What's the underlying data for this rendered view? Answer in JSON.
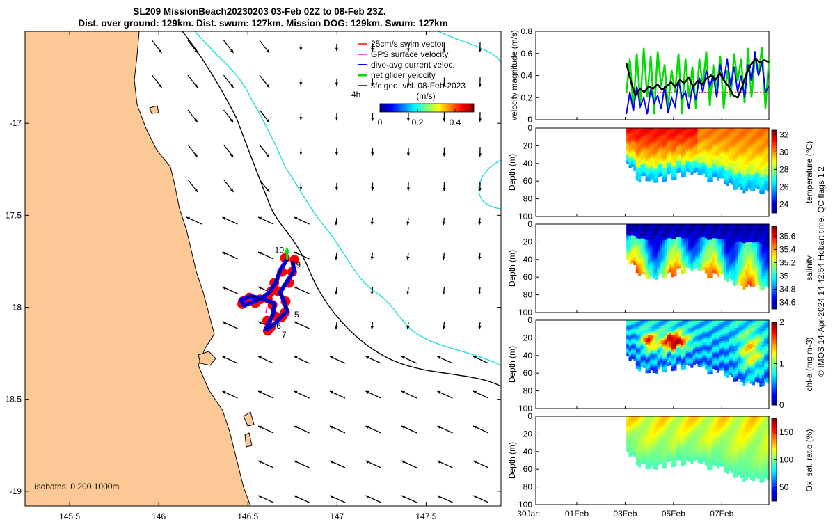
{
  "chart_data": [
    {
      "type": "map",
      "title_line1": "SL209 MissionBeach20230203 03-Feb 02Z to 08-Feb 23Z.",
      "title_line2": "Dist. over ground: 129km. Dist. swum: 127km. Mission DOG: 129km. Swum: 127km",
      "xlim": [
        145.25,
        147.92
      ],
      "ylim": [
        -19.08,
        -16.5
      ],
      "xticks": [
        145.5,
        146,
        146.5,
        147,
        147.5
      ],
      "xtick_labels": [
        "145.5",
        "146",
        "146.5",
        "147",
        "147.5"
      ],
      "yticks": [
        -17,
        -17.5,
        -18,
        -18.5,
        -19
      ],
      "ytick_labels": [
        "-17",
        "-17.5",
        "-18",
        "-18.5",
        "-19"
      ],
      "legend": {
        "placement": "top-right",
        "entries": [
          {
            "label": "25cm/s swim vector",
            "color": "#ff0000"
          },
          {
            "label": "GPS surface velocity",
            "color": "#ff00ff"
          },
          {
            "label": "dive-avg current veloc.",
            "color": "#0000ff"
          },
          {
            "label": "net glider velocity",
            "color": "#00dd00"
          },
          {
            "label": "sfc geo. vel. 08-Feb-2023",
            "color": "#000000"
          }
        ]
      },
      "time_label": "4h",
      "colorbar": {
        "label": "(m/s)",
        "min": 0,
        "max": 0.5,
        "ticks": [
          0,
          0.2,
          0.4
        ],
        "tick_labels": [
          "0",
          "0.2",
          "0.4"
        ]
      },
      "isobath_label": "isobaths: 0   200  1000m",
      "track_day_labels": [
        {
          "label": "5",
          "lon": 146.76,
          "lat": -18.04
        },
        {
          "label": "6",
          "lon": 146.66,
          "lat": -18.1
        },
        {
          "label": "7",
          "lon": 146.69,
          "lat": -18.15
        },
        {
          "label": "9",
          "lon": 146.77,
          "lat": -17.77
        },
        {
          "label": "10",
          "lon": 146.65,
          "lat": -17.69
        }
      ],
      "land_color": "#fcc996",
      "isobath_200_color": "#000000",
      "isobath_1000_color": "#22dddd"
    },
    {
      "type": "line",
      "ylabel": "velocity magnitude (m/s)",
      "ylim": [
        0,
        0.8
      ],
      "yticks": [
        0,
        0.2,
        0.4,
        0.6,
        0.8
      ],
      "ytick_labels": [
        "0",
        "0.2",
        "0.4",
        "0.6",
        "0.8"
      ],
      "x_start_day": 3.05,
      "x_end_day": 8.95,
      "series": [
        {
          "name": "net glider velocity",
          "color": "#00dd00",
          "values": [
            0.25,
            0.55,
            0.1,
            0.6,
            0.15,
            0.65,
            0.2,
            0.58,
            0.05,
            0.62,
            0.3,
            0.5,
            0.1,
            0.45,
            0.25,
            0.6,
            0.05,
            0.55,
            0.2,
            0.48,
            0.1,
            0.55,
            0.3,
            0.62,
            0.12,
            0.5,
            0.25,
            0.58,
            0.1,
            0.45,
            0.2,
            0.6,
            0.35,
            0.55,
            0.15,
            0.65,
            0.2,
            0.58,
            0.4,
            0.66,
            0.1,
            0.55
          ]
        },
        {
          "name": "dive-avg current veloc.",
          "color": "#0000ff",
          "values": [
            0.05,
            0.25,
            0.08,
            0.3,
            0.12,
            0.2,
            0.05,
            0.28,
            0.15,
            0.22,
            0.1,
            0.3,
            0.06,
            0.2,
            0.12,
            0.35,
            0.2,
            0.25,
            0.1,
            0.3,
            0.18,
            0.38,
            0.25,
            0.45,
            0.3,
            0.4,
            0.2,
            0.5,
            0.35,
            0.55,
            0.3,
            0.48,
            0.25,
            0.4,
            0.2,
            0.5,
            0.35,
            0.62,
            0.4,
            0.52,
            0.25,
            0.3
          ]
        },
        {
          "name": "sfc geo. vel.",
          "color": "#000000",
          "values": [
            0.51,
            0.35,
            0.22,
            0.28,
            0.25,
            0.3,
            0.28,
            0.32,
            0.27,
            0.3,
            0.34,
            0.3,
            0.36,
            0.33,
            0.38,
            0.3,
            0.35,
            0.32,
            0.37,
            0.4,
            0.36,
            0.42,
            0.35,
            0.3,
            0.22,
            0.2,
            0.3,
            0.42,
            0.5,
            0.55,
            0.52,
            0.54,
            0.52
          ]
        },
        {
          "name": "25cm/s swim vector",
          "color": "#ff0000",
          "values": [
            0.25,
            0.25
          ]
        }
      ]
    },
    {
      "type": "heatmap",
      "ylabel": "Depth (m)",
      "clabel": "temperature (°C)",
      "ylim": [
        0,
        100
      ],
      "yticks": [
        0,
        20,
        40,
        60,
        80,
        100
      ],
      "ytick_labels": [
        "0",
        "20",
        "40",
        "60",
        "80",
        "100"
      ],
      "clim": [
        23,
        32.5
      ],
      "cticks": [
        24,
        26,
        28,
        30,
        32
      ],
      "ctick_labels": [
        "24",
        "26",
        "28",
        "30",
        "32"
      ],
      "x_start_day": 3.05,
      "x_end_day": 8.95,
      "bottom_depth_profile": [
        40,
        45,
        60,
        55,
        58,
        62,
        55,
        60,
        52,
        58,
        50,
        55,
        48,
        52,
        50,
        56,
        60,
        55,
        58,
        62,
        65,
        68,
        70,
        72,
        68,
        70,
        73,
        72
      ],
      "surface_value": 30.5,
      "deep_value": 27
    },
    {
      "type": "heatmap",
      "ylabel": "Depth (m)",
      "clabel": "salinity",
      "ylim": [
        0,
        100
      ],
      "yticks": [
        0,
        20,
        40,
        60,
        80,
        100
      ],
      "ytick_labels": [
        "0",
        "20",
        "40",
        "60",
        "80",
        "100"
      ],
      "clim": [
        34.5,
        35.75
      ],
      "cticks": [
        34.6,
        34.8,
        35,
        35.2,
        35.4,
        35.6
      ],
      "ctick_labels": [
        "34.6",
        "34.8",
        "35",
        "35.2",
        "35.4",
        "35.6"
      ],
      "x_start_day": 3.05,
      "x_end_day": 8.95,
      "bottom_depth_profile": [
        40,
        45,
        55,
        58,
        60,
        62,
        58,
        60,
        56,
        58,
        50,
        55,
        48,
        52,
        50,
        56,
        60,
        55,
        58,
        62,
        65,
        68,
        70,
        72,
        68,
        70,
        73,
        72
      ],
      "surface_value": 34.55,
      "deep_value": 35.05
    },
    {
      "type": "heatmap",
      "ylabel": "Depth (m)",
      "clabel": "chl-a (mg m-3)",
      "ylim": [
        0,
        100
      ],
      "yticks": [
        0,
        20,
        40,
        60,
        80,
        100
      ],
      "ytick_labels": [
        "0",
        "20",
        "40",
        "60",
        "80",
        "100"
      ],
      "clim": [
        0,
        2
      ],
      "cticks": [
        0,
        1,
        2
      ],
      "ctick_labels": [
        "0",
        "1",
        "2"
      ],
      "x_start_day": 3.05,
      "x_end_day": 8.95,
      "bottom_depth_profile": [
        40,
        45,
        55,
        55,
        58,
        60,
        55,
        58,
        52,
        56,
        50,
        55,
        50,
        52,
        50,
        56,
        60,
        55,
        58,
        62,
        65,
        68,
        70,
        72,
        70,
        72,
        73,
        72
      ],
      "surface_value": 0.9,
      "deep_value": 0.6
    },
    {
      "type": "heatmap",
      "ylabel": "Depth (m)",
      "clabel": "Ox. sat. ratio (%)",
      "ylim": [
        0,
        100
      ],
      "yticks": [
        0,
        20,
        40,
        60,
        80,
        100
      ],
      "ytick_labels": [
        "0",
        "20",
        "40",
        "60",
        "80",
        "100"
      ],
      "clim": [
        25,
        175
      ],
      "cticks": [
        50,
        100,
        150
      ],
      "ctick_labels": [
        "50",
        "100",
        "150"
      ],
      "x_start_day": 3.05,
      "x_end_day": 8.95,
      "bottom_depth_profile": [
        40,
        45,
        55,
        55,
        58,
        60,
        55,
        58,
        52,
        56,
        50,
        55,
        50,
        52,
        50,
        56,
        60,
        55,
        58,
        62,
        65,
        68,
        70,
        72,
        70,
        72,
        73,
        72
      ],
      "surface_value": 118,
      "deep_value": 100
    }
  ],
  "time_axis": {
    "day_min": -0.7,
    "day_max": 8.95,
    "ticks": [
      -1,
      1,
      3,
      5,
      7
    ],
    "tick_labels": [
      "30Jan",
      "01Feb",
      "03Feb",
      "05Feb",
      "07Feb"
    ]
  },
  "footer_text": "© IMOS 14-Apr-2024 14:42:54 Hobart time. QC flags 1  2"
}
